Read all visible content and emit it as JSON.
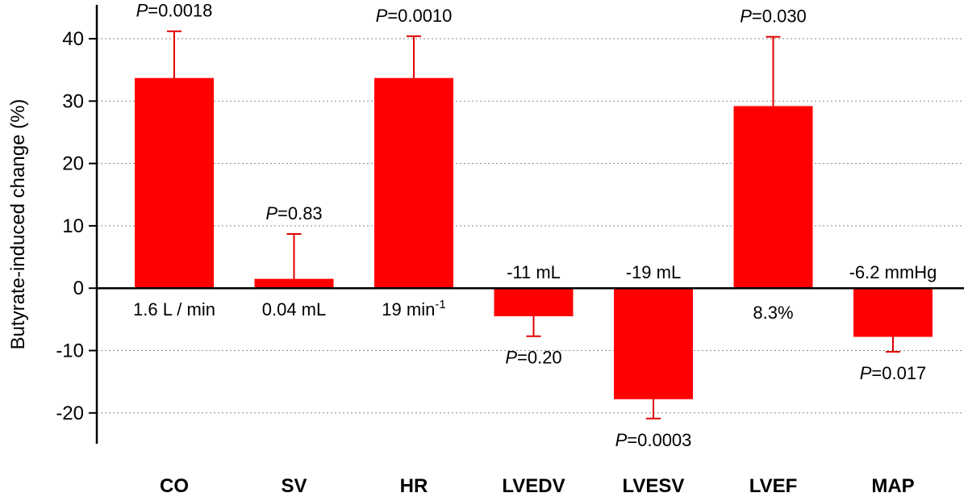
{
  "chart_data": {
    "type": "bar",
    "ylabel": "Butyrate-induced change (%)",
    "ylim": [
      -25,
      45
    ],
    "yticks": [
      40,
      30,
      20,
      10,
      0,
      -10,
      -20
    ],
    "grid": true,
    "bar_color": "#ff0000",
    "categories": [
      "CO",
      "SV",
      "HR",
      "LVEDV",
      "LVESV",
      "LVEF",
      "MAP"
    ],
    "values": [
      33.7,
      1.5,
      33.7,
      -4.5,
      -17.8,
      29.2,
      -7.8
    ],
    "error_bars": [
      7.5,
      7.2,
      6.7,
      3.2,
      3.1,
      11.1,
      2.4
    ],
    "p_values": [
      "0.0018",
      "0.83",
      "0.0010",
      "0.20",
      "0.0003",
      "0.030",
      "0.017"
    ],
    "p_prefix": "P",
    "absolute_changes": [
      "1.6 L / min",
      "0.04 mL",
      "19 min",
      "-11 mL",
      "-19 mL",
      "8.3%",
      "-6.2 mmHg"
    ],
    "absolute_change_superscripts": [
      "",
      "",
      "-1",
      "",
      "",
      "",
      ""
    ]
  }
}
